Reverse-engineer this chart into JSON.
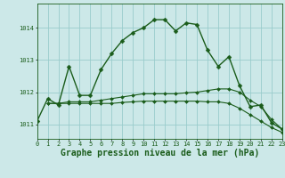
{
  "background_color": "#cce8e8",
  "grid_color": "#99cccc",
  "line_color": "#1a5c1a",
  "xlabel": "Graphe pression niveau de la mer (hPa)",
  "xlabel_fontsize": 7,
  "xlim": [
    0,
    23
  ],
  "ylim": [
    1010.55,
    1014.75
  ],
  "yticks": [
    1011,
    1012,
    1013,
    1014
  ],
  "xticks": [
    0,
    1,
    2,
    3,
    4,
    5,
    6,
    7,
    8,
    9,
    10,
    11,
    12,
    13,
    14,
    15,
    16,
    17,
    18,
    19,
    20,
    21,
    22,
    23
  ],
  "series": [
    {
      "x": [
        0,
        1,
        2,
        3,
        4,
        5,
        6,
        7,
        8,
        9,
        10,
        11,
        12,
        13,
        14,
        15,
        16,
        17,
        18,
        19,
        20,
        21,
        22,
        23
      ],
      "y": [
        1011.1,
        1011.8,
        1011.6,
        1012.8,
        1011.9,
        1011.9,
        1012.7,
        1013.2,
        1013.6,
        1013.85,
        1014.0,
        1014.25,
        1014.25,
        1013.9,
        1014.15,
        1014.1,
        1013.3,
        1012.8,
        1013.1,
        1012.2,
        1011.55,
        1011.6,
        1011.05,
        1010.85
      ],
      "markersize": 2.5,
      "linewidth": 1.0
    },
    {
      "x": [
        1,
        2,
        3,
        4,
        5,
        6,
        7,
        8,
        9,
        10,
        11,
        12,
        13,
        14,
        15,
        16,
        17,
        18,
        19,
        20,
        21,
        22,
        23
      ],
      "y": [
        1011.65,
        1011.65,
        1011.7,
        1011.7,
        1011.7,
        1011.75,
        1011.8,
        1011.85,
        1011.9,
        1011.95,
        1011.95,
        1011.95,
        1011.95,
        1011.98,
        1012.0,
        1012.05,
        1012.1,
        1012.1,
        1012.0,
        1011.75,
        1011.55,
        1011.15,
        1010.85
      ],
      "markersize": 2.0,
      "linewidth": 0.8
    },
    {
      "x": [
        1,
        2,
        3,
        4,
        5,
        6,
        7,
        8,
        9,
        10,
        11,
        12,
        13,
        14,
        15,
        16,
        17,
        18,
        19,
        20,
        21,
        22,
        23
      ],
      "y": [
        1011.65,
        1011.65,
        1011.65,
        1011.65,
        1011.65,
        1011.65,
        1011.65,
        1011.68,
        1011.7,
        1011.72,
        1011.72,
        1011.72,
        1011.72,
        1011.72,
        1011.72,
        1011.7,
        1011.7,
        1011.65,
        1011.5,
        1011.3,
        1011.1,
        1010.9,
        1010.75
      ],
      "markersize": 2.0,
      "linewidth": 0.8
    }
  ]
}
